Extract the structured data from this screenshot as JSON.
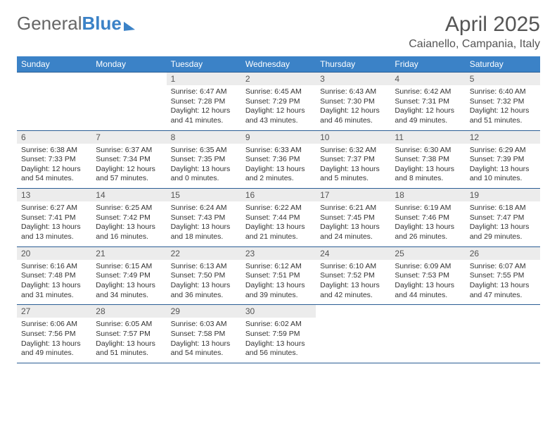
{
  "logo": {
    "part1": "General",
    "part2": "Blue"
  },
  "title": "April 2025",
  "location": "Caianello, Campania, Italy",
  "colors": {
    "header_bg": "#3b82c7",
    "header_text": "#ffffff",
    "daynum_bg": "#ececec",
    "border": "#2a5d94",
    "text": "#333333",
    "title_text": "#555555"
  },
  "day_headers": [
    "Sunday",
    "Monday",
    "Tuesday",
    "Wednesday",
    "Thursday",
    "Friday",
    "Saturday"
  ],
  "weeks": [
    [
      {
        "n": "",
        "sr": "",
        "ss": "",
        "dl": ""
      },
      {
        "n": "",
        "sr": "",
        "ss": "",
        "dl": ""
      },
      {
        "n": "1",
        "sr": "6:47 AM",
        "ss": "7:28 PM",
        "dl": "12 hours and 41 minutes."
      },
      {
        "n": "2",
        "sr": "6:45 AM",
        "ss": "7:29 PM",
        "dl": "12 hours and 43 minutes."
      },
      {
        "n": "3",
        "sr": "6:43 AM",
        "ss": "7:30 PM",
        "dl": "12 hours and 46 minutes."
      },
      {
        "n": "4",
        "sr": "6:42 AM",
        "ss": "7:31 PM",
        "dl": "12 hours and 49 minutes."
      },
      {
        "n": "5",
        "sr": "6:40 AM",
        "ss": "7:32 PM",
        "dl": "12 hours and 51 minutes."
      }
    ],
    [
      {
        "n": "6",
        "sr": "6:38 AM",
        "ss": "7:33 PM",
        "dl": "12 hours and 54 minutes."
      },
      {
        "n": "7",
        "sr": "6:37 AM",
        "ss": "7:34 PM",
        "dl": "12 hours and 57 minutes."
      },
      {
        "n": "8",
        "sr": "6:35 AM",
        "ss": "7:35 PM",
        "dl": "13 hours and 0 minutes."
      },
      {
        "n": "9",
        "sr": "6:33 AM",
        "ss": "7:36 PM",
        "dl": "13 hours and 2 minutes."
      },
      {
        "n": "10",
        "sr": "6:32 AM",
        "ss": "7:37 PM",
        "dl": "13 hours and 5 minutes."
      },
      {
        "n": "11",
        "sr": "6:30 AM",
        "ss": "7:38 PM",
        "dl": "13 hours and 8 minutes."
      },
      {
        "n": "12",
        "sr": "6:29 AM",
        "ss": "7:39 PM",
        "dl": "13 hours and 10 minutes."
      }
    ],
    [
      {
        "n": "13",
        "sr": "6:27 AM",
        "ss": "7:41 PM",
        "dl": "13 hours and 13 minutes."
      },
      {
        "n": "14",
        "sr": "6:25 AM",
        "ss": "7:42 PM",
        "dl": "13 hours and 16 minutes."
      },
      {
        "n": "15",
        "sr": "6:24 AM",
        "ss": "7:43 PM",
        "dl": "13 hours and 18 minutes."
      },
      {
        "n": "16",
        "sr": "6:22 AM",
        "ss": "7:44 PM",
        "dl": "13 hours and 21 minutes."
      },
      {
        "n": "17",
        "sr": "6:21 AM",
        "ss": "7:45 PM",
        "dl": "13 hours and 24 minutes."
      },
      {
        "n": "18",
        "sr": "6:19 AM",
        "ss": "7:46 PM",
        "dl": "13 hours and 26 minutes."
      },
      {
        "n": "19",
        "sr": "6:18 AM",
        "ss": "7:47 PM",
        "dl": "13 hours and 29 minutes."
      }
    ],
    [
      {
        "n": "20",
        "sr": "6:16 AM",
        "ss": "7:48 PM",
        "dl": "13 hours and 31 minutes."
      },
      {
        "n": "21",
        "sr": "6:15 AM",
        "ss": "7:49 PM",
        "dl": "13 hours and 34 minutes."
      },
      {
        "n": "22",
        "sr": "6:13 AM",
        "ss": "7:50 PM",
        "dl": "13 hours and 36 minutes."
      },
      {
        "n": "23",
        "sr": "6:12 AM",
        "ss": "7:51 PM",
        "dl": "13 hours and 39 minutes."
      },
      {
        "n": "24",
        "sr": "6:10 AM",
        "ss": "7:52 PM",
        "dl": "13 hours and 42 minutes."
      },
      {
        "n": "25",
        "sr": "6:09 AM",
        "ss": "7:53 PM",
        "dl": "13 hours and 44 minutes."
      },
      {
        "n": "26",
        "sr": "6:07 AM",
        "ss": "7:55 PM",
        "dl": "13 hours and 47 minutes."
      }
    ],
    [
      {
        "n": "27",
        "sr": "6:06 AM",
        "ss": "7:56 PM",
        "dl": "13 hours and 49 minutes."
      },
      {
        "n": "28",
        "sr": "6:05 AM",
        "ss": "7:57 PM",
        "dl": "13 hours and 51 minutes."
      },
      {
        "n": "29",
        "sr": "6:03 AM",
        "ss": "7:58 PM",
        "dl": "13 hours and 54 minutes."
      },
      {
        "n": "30",
        "sr": "6:02 AM",
        "ss": "7:59 PM",
        "dl": "13 hours and 56 minutes."
      },
      {
        "n": "",
        "sr": "",
        "ss": "",
        "dl": ""
      },
      {
        "n": "",
        "sr": "",
        "ss": "",
        "dl": ""
      },
      {
        "n": "",
        "sr": "",
        "ss": "",
        "dl": ""
      }
    ]
  ],
  "labels": {
    "sunrise": "Sunrise:",
    "sunset": "Sunset:",
    "daylight": "Daylight:"
  }
}
